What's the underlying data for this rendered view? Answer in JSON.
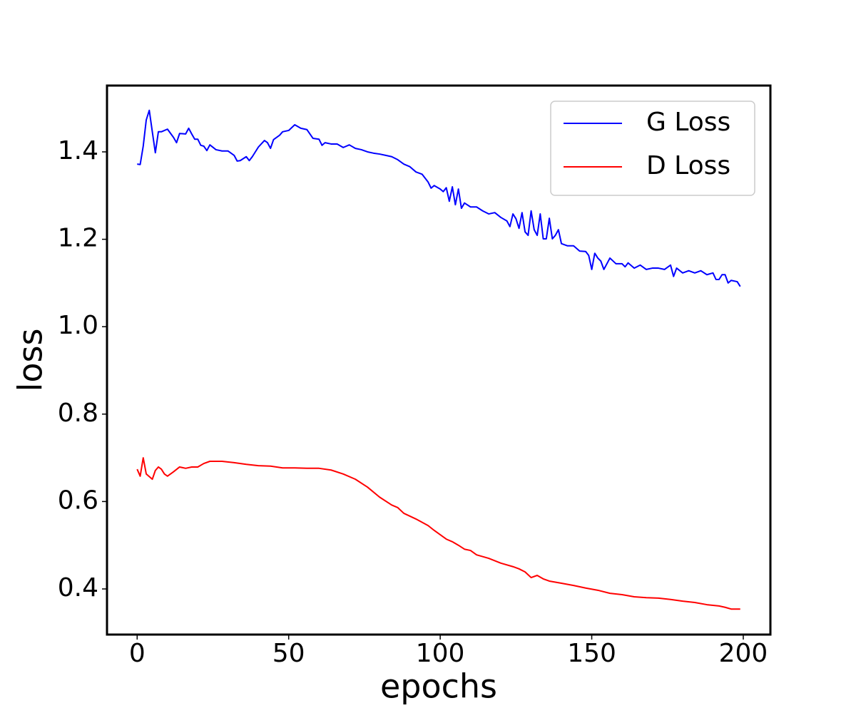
{
  "chart_data": {
    "type": "line",
    "xlabel": "epochs",
    "ylabel": "loss",
    "xlim": [
      -9.95,
      208.95
    ],
    "ylim": [
      0.2956,
      1.5517
    ],
    "xticks": [
      0,
      50,
      100,
      150,
      200
    ],
    "yticks": [
      0.4,
      0.6,
      0.8,
      {
        "value": 1,
        "label": "1.0"
      },
      1.2,
      1.4
    ],
    "legend": "upper right",
    "series": [
      {
        "name": "G Loss",
        "color": "#0000ff",
        "x": [
          0,
          1,
          2,
          3,
          4,
          5,
          6,
          7,
          8,
          10,
          12,
          13,
          14,
          16,
          17,
          18,
          19,
          20,
          21,
          22,
          23,
          24,
          26,
          28,
          30,
          32,
          33,
          34,
          36,
          37,
          38,
          40,
          42,
          43,
          44,
          45,
          47,
          48,
          50,
          52,
          54,
          56,
          58,
          60,
          61,
          62,
          64,
          66,
          68,
          70,
          72,
          74,
          76,
          78,
          80,
          82,
          84,
          86,
          88,
          90,
          92,
          94,
          96,
          97,
          98,
          100,
          101,
          102,
          103,
          104,
          105,
          106,
          107,
          108,
          110,
          112,
          114,
          116,
          118,
          120,
          122,
          123,
          124,
          125,
          126,
          127,
          128,
          129,
          130,
          131,
          132,
          133,
          134,
          135,
          136,
          137,
          138,
          139,
          140,
          142,
          144,
          146,
          148,
          149,
          150,
          151,
          152,
          153,
          154,
          155,
          156,
          158,
          160,
          161,
          162,
          164,
          166,
          168,
          170,
          172,
          174,
          176,
          177,
          178,
          180,
          182,
          184,
          186,
          188,
          190,
          191,
          192,
          193,
          194,
          195,
          196,
          198,
          199
        ],
        "values": [
          1.372,
          1.371,
          1.413,
          1.473,
          1.495,
          1.446,
          1.398,
          1.446,
          1.446,
          1.452,
          1.433,
          1.421,
          1.442,
          1.441,
          1.454,
          1.441,
          1.429,
          1.429,
          1.415,
          1.413,
          1.403,
          1.416,
          1.405,
          1.402,
          1.402,
          1.392,
          1.379,
          1.38,
          1.389,
          1.38,
          1.389,
          1.411,
          1.426,
          1.421,
          1.408,
          1.428,
          1.438,
          1.446,
          1.449,
          1.462,
          1.454,
          1.451,
          1.431,
          1.429,
          1.415,
          1.421,
          1.418,
          1.418,
          1.41,
          1.416,
          1.408,
          1.405,
          1.4,
          1.397,
          1.395,
          1.392,
          1.389,
          1.382,
          1.372,
          1.366,
          1.354,
          1.349,
          1.331,
          1.317,
          1.323,
          1.315,
          1.309,
          1.318,
          1.287,
          1.32,
          1.279,
          1.315,
          1.271,
          1.283,
          1.274,
          1.274,
          1.265,
          1.258,
          1.261,
          1.25,
          1.242,
          1.229,
          1.258,
          1.247,
          1.225,
          1.261,
          1.217,
          1.209,
          1.265,
          1.222,
          1.209,
          1.258,
          1.201,
          1.201,
          1.248,
          1.201,
          1.209,
          1.222,
          1.19,
          1.185,
          1.185,
          1.173,
          1.172,
          1.163,
          1.131,
          1.168,
          1.157,
          1.15,
          1.131,
          1.144,
          1.157,
          1.144,
          1.144,
          1.137,
          1.146,
          1.134,
          1.141,
          1.131,
          1.134,
          1.134,
          1.131,
          1.141,
          1.115,
          1.134,
          1.123,
          1.128,
          1.123,
          1.128,
          1.119,
          1.123,
          1.108,
          1.108,
          1.119,
          1.119,
          1.1,
          1.106,
          1.103,
          1.092
        ]
      },
      {
        "name": "D Loss",
        "color": "#ff0000",
        "x": [
          0,
          1,
          2,
          3,
          5,
          6,
          7,
          8,
          9,
          10,
          12,
          14,
          16,
          18,
          20,
          22,
          24,
          28,
          32,
          36,
          40,
          44,
          48,
          52,
          56,
          60,
          64,
          68,
          72,
          76,
          80,
          84,
          86,
          88,
          92,
          96,
          98,
          100,
          102,
          104,
          106,
          108,
          110,
          112,
          116,
          120,
          124,
          126,
          128,
          130,
          132,
          134,
          136,
          140,
          144,
          148,
          152,
          156,
          160,
          164,
          168,
          172,
          176,
          180,
          184,
          188,
          192,
          194,
          196,
          199
        ],
        "values": [
          0.674,
          0.658,
          0.7,
          0.663,
          0.651,
          0.671,
          0.679,
          0.674,
          0.663,
          0.658,
          0.668,
          0.679,
          0.676,
          0.679,
          0.679,
          0.687,
          0.692,
          0.692,
          0.689,
          0.685,
          0.682,
          0.681,
          0.677,
          0.677,
          0.676,
          0.676,
          0.672,
          0.663,
          0.651,
          0.633,
          0.61,
          0.592,
          0.586,
          0.573,
          0.56,
          0.545,
          0.534,
          0.524,
          0.514,
          0.508,
          0.5,
          0.491,
          0.488,
          0.478,
          0.47,
          0.459,
          0.451,
          0.446,
          0.439,
          0.426,
          0.431,
          0.423,
          0.418,
          0.413,
          0.408,
          0.402,
          0.397,
          0.39,
          0.387,
          0.382,
          0.38,
          0.379,
          0.376,
          0.372,
          0.369,
          0.364,
          0.361,
          0.358,
          0.354,
          0.354
        ]
      }
    ]
  }
}
